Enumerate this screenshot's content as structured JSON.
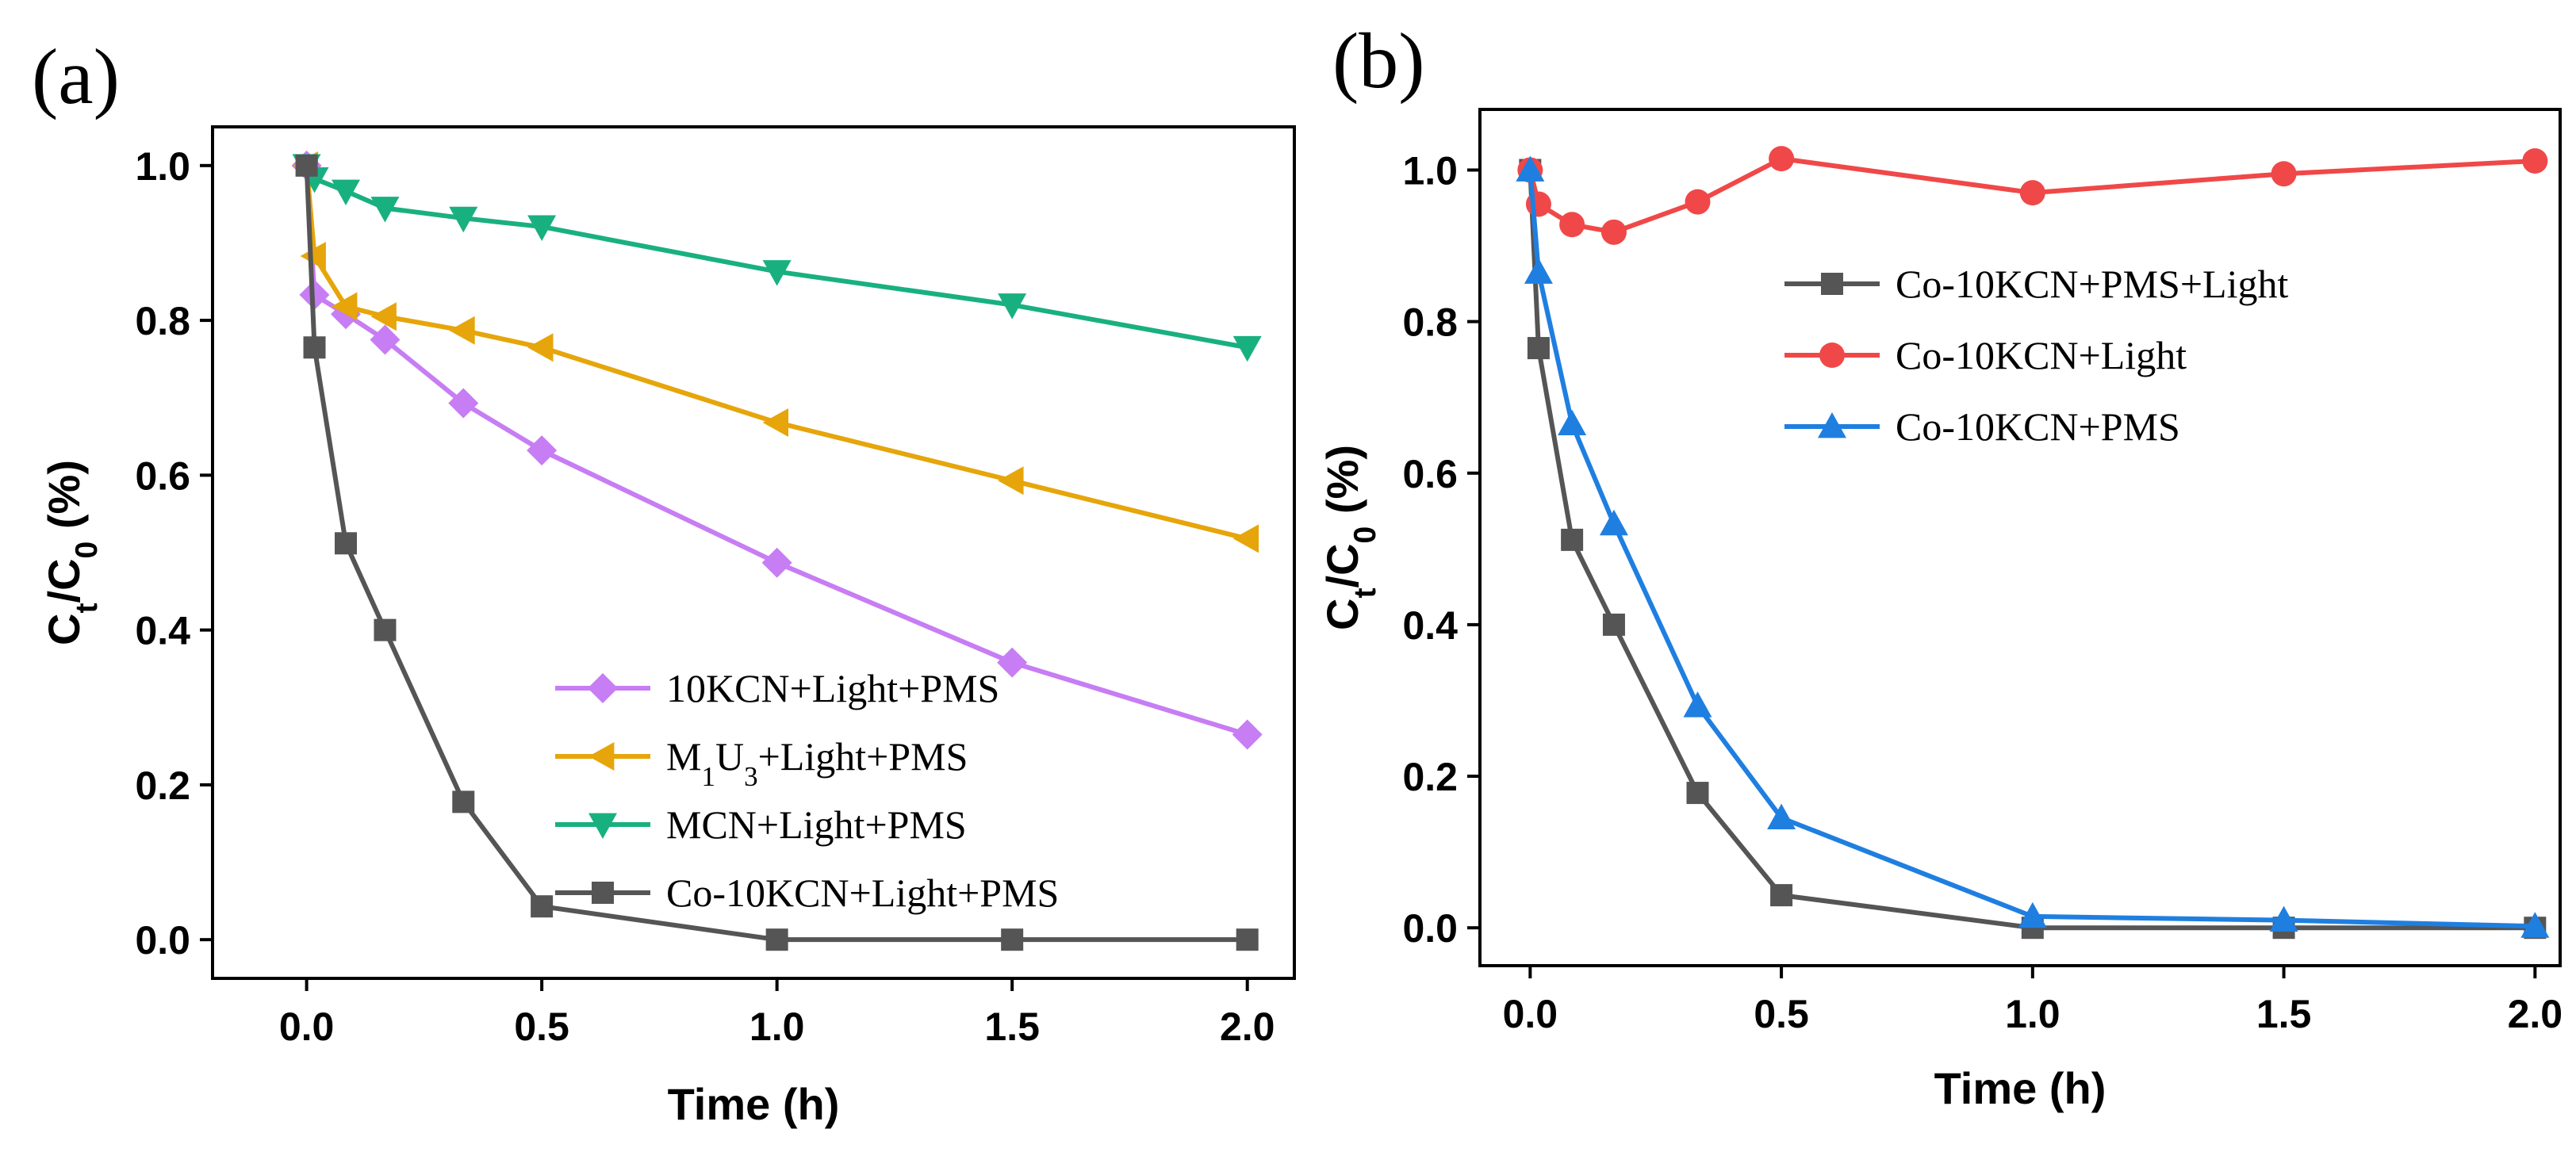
{
  "chart_data": [
    {
      "panel_label": "(a)",
      "type": "line",
      "xlabel": "Time (h)",
      "ylabel": "Ct/C0 (%)",
      "ylabel_parts": {
        "main1": "C",
        "sub1": "t",
        "slash": "/C",
        "sub2": "0",
        "rest": " (%)"
      },
      "xlim": [
        -0.2,
        2.1
      ],
      "ylim": [
        -0.05,
        1.05
      ],
      "xticks": [
        0.0,
        0.5,
        1.0,
        1.5,
        2.0
      ],
      "xtick_labels": [
        "0.0",
        "0.5",
        "1.0",
        "1.5",
        "2.0"
      ],
      "yticks": [
        0.0,
        0.2,
        0.4,
        0.6,
        0.8,
        1.0
      ],
      "ytick_labels": [
        "0.0",
        "0.2",
        "0.4",
        "0.6",
        "0.8",
        "1.0"
      ],
      "legend_position": "bottom-right",
      "series": [
        {
          "name": "10KCN+Light+PMS",
          "label_parts": {
            "main": "10KCN+Light+PMS"
          },
          "color": "#c77df3",
          "marker": "diamond",
          "x": [
            0,
            0.0167,
            0.0833,
            0.1667,
            0.3333,
            0.5,
            1.0,
            1.5,
            2.0
          ],
          "y": [
            1.0,
            0.833,
            0.808,
            0.775,
            0.693,
            0.632,
            0.487,
            0.358,
            0.265
          ]
        },
        {
          "name": "M1U3+Light+PMS",
          "label_parts": {
            "a": "M",
            "sub1": "1",
            "b": "U",
            "sub2": "3",
            "rest": "+Light+PMS"
          },
          "color": "#e6a50a",
          "marker": "triangle-left",
          "x": [
            0,
            0.0167,
            0.0833,
            0.1667,
            0.3333,
            0.5,
            1.0,
            1.5,
            2.0
          ],
          "y": [
            1.0,
            0.883,
            0.818,
            0.805,
            0.787,
            0.765,
            0.668,
            0.593,
            0.518
          ]
        },
        {
          "name": "MCN+Light+PMS",
          "label_parts": {
            "main": "MCN+Light+PMS"
          },
          "color": "#19b080",
          "marker": "triangle-down",
          "x": [
            0,
            0.0167,
            0.0833,
            0.1667,
            0.3333,
            0.5,
            1.0,
            1.5,
            2.0
          ],
          "y": [
            1.0,
            0.983,
            0.967,
            0.945,
            0.932,
            0.921,
            0.863,
            0.82,
            0.765
          ]
        },
        {
          "name": "Co-10KCN+Light+PMS",
          "label_parts": {
            "main": "Co-10KCN+Light+PMS"
          },
          "color": "#555555",
          "marker": "square",
          "x": [
            0,
            0.0167,
            0.0833,
            0.1667,
            0.3333,
            0.5,
            1.0,
            1.5,
            2.0
          ],
          "y": [
            1.0,
            0.765,
            0.512,
            0.4,
            0.178,
            0.043,
            0.0,
            0.0,
            0.0
          ]
        }
      ]
    },
    {
      "panel_label": "(b)",
      "type": "line",
      "xlabel": "Time (h)",
      "ylabel": "Ct/C0 (%)",
      "ylabel_parts": {
        "main1": "C",
        "sub1": "t",
        "slash": "/C",
        "sub2": "0",
        "rest": " (%)"
      },
      "xlim": [
        -0.1,
        2.05
      ],
      "ylim": [
        -0.05,
        1.08
      ],
      "xticks": [
        0.0,
        0.5,
        1.0,
        1.5,
        2.0
      ],
      "xtick_labels": [
        "0.0",
        "0.5",
        "1.0",
        "1.5",
        "2.0"
      ],
      "yticks": [
        0.0,
        0.2,
        0.4,
        0.6,
        0.8,
        1.0
      ],
      "ytick_labels": [
        "0.0",
        "0.2",
        "0.4",
        "0.6",
        "0.8",
        "1.0"
      ],
      "legend_position": "top-right",
      "series": [
        {
          "name": "Co-10KCN+PMS+Light",
          "label_parts": {
            "main": "Co-10KCN+PMS+Light"
          },
          "color": "#555555",
          "marker": "square",
          "x": [
            0,
            0.0167,
            0.0833,
            0.1667,
            0.3333,
            0.5,
            1.0,
            1.5,
            2.0
          ],
          "y": [
            1.0,
            0.765,
            0.512,
            0.4,
            0.178,
            0.043,
            0.0,
            0.0,
            0.0
          ]
        },
        {
          "name": "Co-10KCN+Light",
          "label_parts": {
            "main": "Co-10KCN+Light"
          },
          "color": "#f04848",
          "marker": "circle",
          "x": [
            0,
            0.0167,
            0.0833,
            0.1667,
            0.3333,
            0.5,
            1.0,
            1.5,
            2.0
          ],
          "y": [
            1.0,
            0.955,
            0.928,
            0.918,
            0.958,
            1.015,
            0.97,
            0.995,
            1.012
          ]
        },
        {
          "name": "Co-10KCN+PMS",
          "label_parts": {
            "main": "Co-10KCN+PMS"
          },
          "color": "#1f7fe0",
          "marker": "triangle-up",
          "x": [
            0,
            0.0167,
            0.0833,
            0.1667,
            0.3333,
            0.5,
            1.0,
            1.5,
            2.0
          ],
          "y": [
            1.0,
            0.865,
            0.665,
            0.533,
            0.293,
            0.145,
            0.015,
            0.01,
            0.002
          ]
        }
      ]
    }
  ]
}
